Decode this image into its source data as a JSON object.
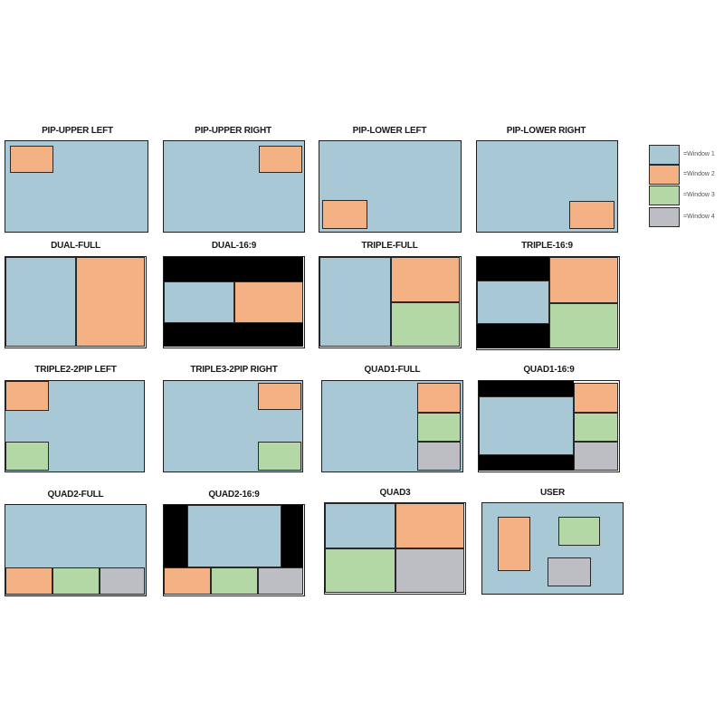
{
  "colors": {
    "window1": "#a8c8d6",
    "window2": "#f4b183",
    "window3": "#b3d8a6",
    "window4": "#bdbec3",
    "bar": "#000000"
  },
  "layouts": [
    {
      "title": "PIP-UPPER LEFT"
    },
    {
      "title": "PIP-UPPER RIGHT"
    },
    {
      "title": "PIP-LOWER LEFT"
    },
    {
      "title": "PIP-LOWER RIGHT"
    },
    {
      "title": "DUAL-FULL"
    },
    {
      "title": "DUAL-16:9"
    },
    {
      "title": "TRIPLE-FULL"
    },
    {
      "title": "TRIPLE-16:9"
    },
    {
      "title": "TRIPLE2-2PIP LEFT"
    },
    {
      "title": "TRIPLE3-2PIP RIGHT"
    },
    {
      "title": "QUAD1-FULL"
    },
    {
      "title": "QUAD1-16:9"
    },
    {
      "title": "QUAD2-FULL"
    },
    {
      "title": "QUAD2-16:9"
    },
    {
      "title": "QUAD3"
    },
    {
      "title": "USER"
    }
  ],
  "legend": [
    {
      "label": "=Window 1",
      "color": "#a8c8d6"
    },
    {
      "label": "=Window 2",
      "color": "#f4b183"
    },
    {
      "label": "=Window 3",
      "color": "#b3d8a6"
    },
    {
      "label": "=Window 4",
      "color": "#bdbec3"
    }
  ]
}
